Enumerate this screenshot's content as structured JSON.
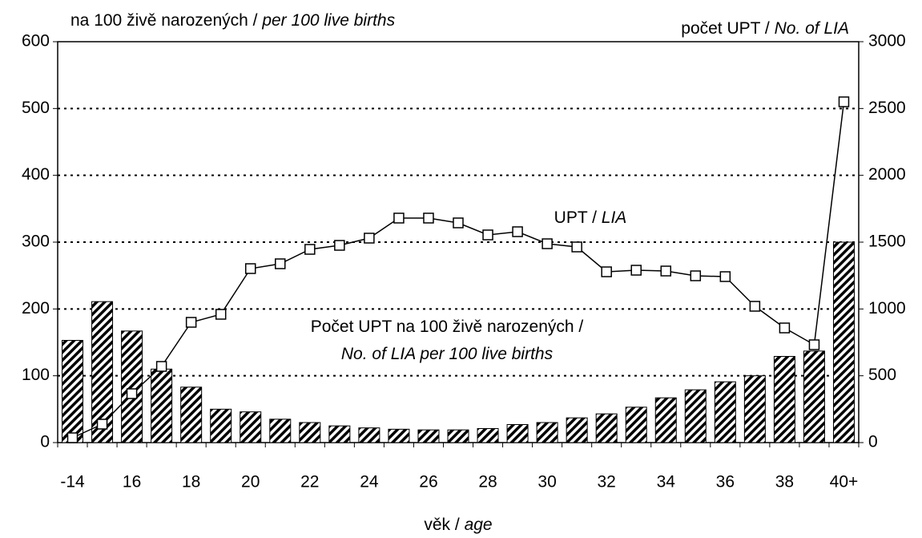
{
  "chart_data": {
    "type": "bar_line",
    "y_label": [
      "na  100 živě narozených",
      " / ",
      "per 100 live births"
    ],
    "y2_label": [
      "počet UPT",
      " / ",
      "No. of LIA"
    ],
    "x_label": [
      "věk",
      " / ",
      "age"
    ],
    "annotations": [
      [
        "UPT",
        " / ",
        "LIA"
      ],
      [
        "Počet UPT na 100 živě narozených /"
      ],
      [
        "No. of LIA per 100 live births"
      ]
    ],
    "categories": [
      "-14",
      null,
      "16",
      null,
      "18",
      null,
      "20",
      null,
      "22",
      null,
      "24",
      null,
      "26",
      null,
      "28",
      null,
      "30",
      null,
      "32",
      null,
      "34",
      null,
      "36",
      null,
      "38",
      null,
      "40+"
    ],
    "series": [
      {
        "type": "bar",
        "color": "#000000",
        "values": [
          153,
          211,
          167,
          110,
          83,
          50,
          46,
          35,
          30,
          25,
          22,
          20,
          19,
          19,
          21,
          27,
          30,
          37,
          43,
          53,
          67,
          79,
          91,
          100,
          129,
          137,
          300
        ]
      },
      {
        "type": "line",
        "axis": "y2",
        "color": "#000000",
        "values": [
          36,
          138,
          366,
          570,
          900,
          960,
          1302,
          1338,
          1446,
          1476,
          1530,
          1680,
          1680,
          1644,
          1554,
          1578,
          1488,
          1464,
          1278,
          1290,
          1284,
          1248,
          1242,
          1020,
          858,
          732,
          2550
        ]
      }
    ],
    "ylim": [
      0,
      600
    ],
    "yticks": [
      0,
      100,
      200,
      300,
      400,
      500,
      600
    ],
    "y2lim": [
      0,
      3000
    ],
    "y2ticks": [
      0,
      500,
      1000,
      1500,
      2000,
      2500,
      3000
    ],
    "grid": true
  }
}
